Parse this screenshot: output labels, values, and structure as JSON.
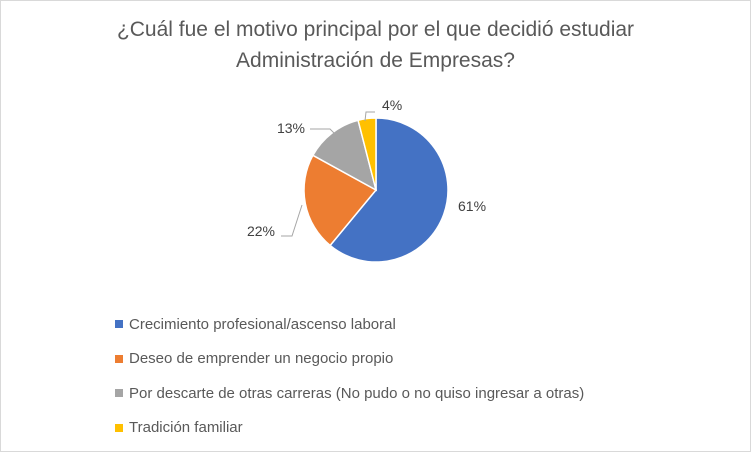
{
  "chart_data": {
    "type": "pie",
    "title": "¿Cuál fue el motivo principal por el que decidió estudiar Administración de Empresas?",
    "title_lines": [
      "¿Cuál fue el motivo principal por el que decidió estudiar",
      "Administración de Empresas?"
    ],
    "categories": [
      "Crecimiento profesional/ascenso laboral",
      "Deseo de emprender un negocio propio",
      "Por descarte de otras carreras (No pudo o no quiso ingresar a otras)",
      "Tradición familiar"
    ],
    "values": [
      61,
      22,
      13,
      4
    ],
    "labels": [
      "61%",
      "22%",
      "13%",
      "4%"
    ],
    "colors": [
      "#4472c4",
      "#ed7d31",
      "#a5a5a5",
      "#ffc000"
    ],
    "legend_position": "bottom"
  }
}
